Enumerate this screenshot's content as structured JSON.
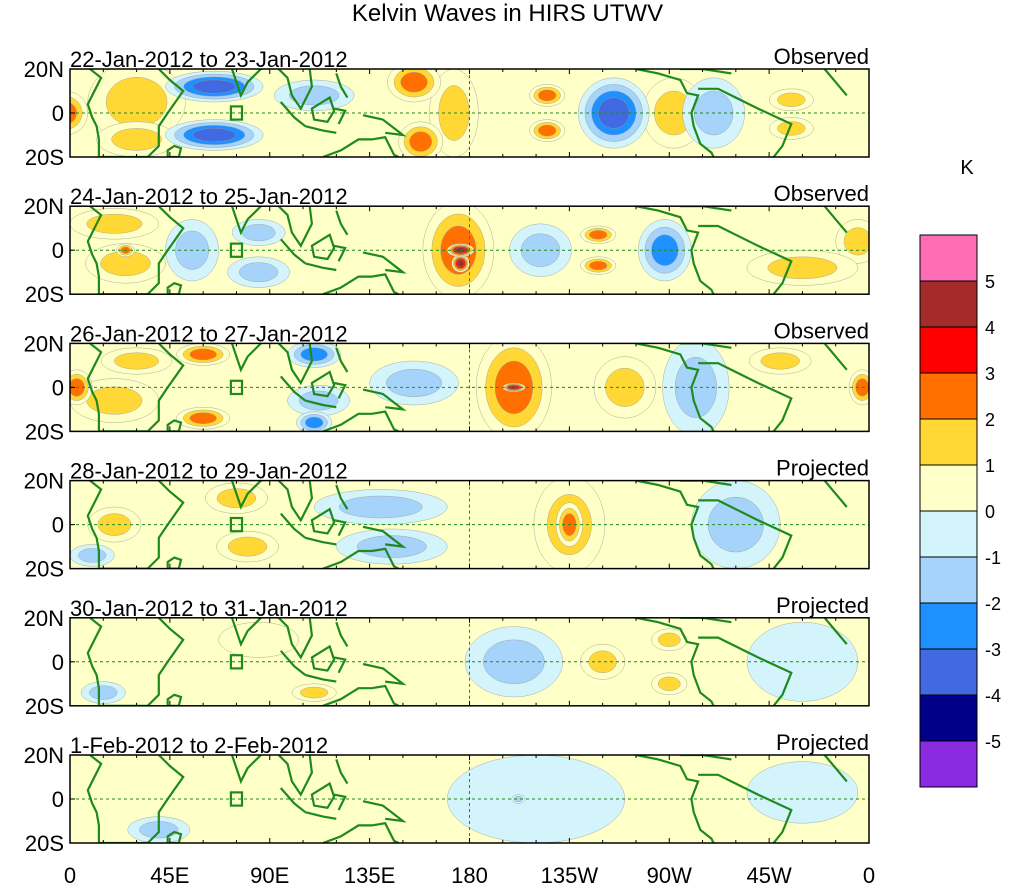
{
  "chart_data": {
    "type": "heatmap",
    "title": "Kelvin Waves in HIRS UTWV",
    "units": "K",
    "y_ticks": [
      "20N",
      "0",
      "20S"
    ],
    "x_ticks": [
      "0",
      "45E",
      "90E",
      "135E",
      "180",
      "135W",
      "90W",
      "45W",
      "0"
    ],
    "x_range_deg_east": [
      0,
      360
    ],
    "y_range_deg": [
      -20,
      20
    ],
    "colorbar": {
      "labels": [
        "5",
        "4",
        "3",
        "2",
        "1",
        "0",
        "-1",
        "-2",
        "-3",
        "-4",
        "-5"
      ],
      "colors": [
        "#ff6eb4",
        "#a52a2a",
        "#ff0000",
        "#ff7000",
        "#ffd836",
        "#ffffc8",
        "#d2f4fa",
        "#a5d3fa",
        "#1e90ff",
        "#4169e1",
        "#00008b",
        "#8a2be2"
      ]
    },
    "panels": [
      {
        "date_label": "22-Jan-2012 to 23-Jan-2012",
        "status": "Observed",
        "blobs": [
          {
            "lon": -2,
            "lat": 0,
            "w": 10,
            "h": 10,
            "v": 2.5
          },
          {
            "lon": 30,
            "lat": 5,
            "w": 22,
            "h": 18,
            "v": 1.5
          },
          {
            "lon": 30,
            "lat": -12,
            "w": 18,
            "h": 8,
            "v": 1.5
          },
          {
            "lon": 65,
            "lat": 12,
            "w": 22,
            "h": 7,
            "v": -3.5
          },
          {
            "lon": 65,
            "lat": -10,
            "w": 22,
            "h": 7,
            "v": -3.5
          },
          {
            "lon": 110,
            "lat": 8,
            "w": 18,
            "h": 7,
            "v": -1.5
          },
          {
            "lon": 155,
            "lat": 14,
            "w": 12,
            "h": 9,
            "v": 2.8
          },
          {
            "lon": 158,
            "lat": -13,
            "w": 10,
            "h": 9,
            "v": 2.8
          },
          {
            "lon": 173,
            "lat": 0,
            "w": 11,
            "h": 20,
            "v": 1.3
          },
          {
            "lon": 215,
            "lat": 8,
            "w": 8,
            "h": 5,
            "v": 2.8
          },
          {
            "lon": 215,
            "lat": -8,
            "w": 8,
            "h": 5,
            "v": 2.8
          },
          {
            "lon": 245,
            "lat": 0,
            "w": 16,
            "h": 16,
            "v": -3.6
          },
          {
            "lon": 272,
            "lat": 0,
            "w": 14,
            "h": 16,
            "v": 1.3
          },
          {
            "lon": 325,
            "lat": 6,
            "w": 10,
            "h": 5,
            "v": 1.7
          },
          {
            "lon": 325,
            "lat": -7,
            "w": 10,
            "h": 5,
            "v": 1.7
          },
          {
            "lon": 290,
            "lat": 0,
            "w": 14,
            "h": 16,
            "v": -1.3
          }
        ]
      },
      {
        "date_label": "24-Jan-2012 to 25-Jan-2012",
        "status": "Observed",
        "blobs": [
          {
            "lon": 20,
            "lat": 12,
            "w": 20,
            "h": 7,
            "v": 1.6
          },
          {
            "lon": 25,
            "lat": -6,
            "w": 18,
            "h": 9,
            "v": 1.6
          },
          {
            "lon": 25,
            "lat": 0,
            "w": 4,
            "h": 3,
            "v": 2.4
          },
          {
            "lon": 55,
            "lat": 0,
            "w": 12,
            "h": 14,
            "v": -1.3
          },
          {
            "lon": 85,
            "lat": 8,
            "w": 12,
            "h": 6,
            "v": -2.0
          },
          {
            "lon": 85,
            "lat": -10,
            "w": 14,
            "h": 7,
            "v": -2.0
          },
          {
            "lon": 175,
            "lat": 0,
            "w": 16,
            "h": 22,
            "v": 3.0
          },
          {
            "lon": 176,
            "lat": 0,
            "w": 6,
            "h": 3,
            "v": 4.6
          },
          {
            "lon": 176,
            "lat": -6,
            "w": 4,
            "h": 4,
            "v": 4.2
          },
          {
            "lon": 212,
            "lat": 0,
            "w": 14,
            "h": 12,
            "v": -1.3
          },
          {
            "lon": 238,
            "lat": 7,
            "w": 8,
            "h": 4,
            "v": 2.5
          },
          {
            "lon": 238,
            "lat": -7,
            "w": 8,
            "h": 4,
            "v": 2.5
          },
          {
            "lon": 268,
            "lat": 0,
            "w": 12,
            "h": 14,
            "v": -2.8
          },
          {
            "lon": 330,
            "lat": -8,
            "w": 25,
            "h": 8,
            "v": 1.4
          },
          {
            "lon": 355,
            "lat": 4,
            "w": 10,
            "h": 10,
            "v": 1.3
          }
        ]
      },
      {
        "date_label": "26-Jan-2012 to 27-Jan-2012",
        "status": "Observed",
        "blobs": [
          {
            "lon": 3,
            "lat": 0,
            "w": 7,
            "h": 8,
            "v": 2.4
          },
          {
            "lon": 20,
            "lat": -6,
            "w": 20,
            "h": 10,
            "v": 1.5
          },
          {
            "lon": 60,
            "lat": 15,
            "w": 12,
            "h": 5,
            "v": 2.4
          },
          {
            "lon": 60,
            "lat": -14,
            "w": 12,
            "h": 5,
            "v": 2.4
          },
          {
            "lon": 30,
            "lat": 12,
            "w": 16,
            "h": 6,
            "v": 1.3
          },
          {
            "lon": 110,
            "lat": 15,
            "w": 12,
            "h": 6,
            "v": -2.6
          },
          {
            "lon": 112,
            "lat": -6,
            "w": 14,
            "h": 7,
            "v": -1.5
          },
          {
            "lon": 110,
            "lat": -16,
            "w": 8,
            "h": 5,
            "v": -2.8
          },
          {
            "lon": 155,
            "lat": 2,
            "w": 20,
            "h": 10,
            "v": -1.3
          },
          {
            "lon": 200,
            "lat": 0,
            "w": 17,
            "h": 24,
            "v": 3.0
          },
          {
            "lon": 200,
            "lat": 0,
            "w": 5,
            "h": 2,
            "v": 4.3
          },
          {
            "lon": 250,
            "lat": 0,
            "w": 14,
            "h": 14,
            "v": 1.4
          },
          {
            "lon": 282,
            "lat": 0,
            "w": 15,
            "h": 22,
            "v": -1.4
          },
          {
            "lon": 320,
            "lat": 12,
            "w": 14,
            "h": 6,
            "v": 1.3
          },
          {
            "lon": 357,
            "lat": 0,
            "w": 6,
            "h": 8,
            "v": 2.4
          }
        ]
      },
      {
        "date_label": "28-Jan-2012 to 29-Jan-2012",
        "status": "Projected",
        "blobs": [
          {
            "lon": 20,
            "lat": 0,
            "w": 12,
            "h": 8,
            "v": 1.3
          },
          {
            "lon": 75,
            "lat": 12,
            "w": 14,
            "h": 7,
            "v": 1.5
          },
          {
            "lon": 80,
            "lat": -10,
            "w": 14,
            "h": 7,
            "v": 1.5
          },
          {
            "lon": 140,
            "lat": 8,
            "w": 30,
            "h": 8,
            "v": -1.3
          },
          {
            "lon": 145,
            "lat": -10,
            "w": 25,
            "h": 8,
            "v": -1.2
          },
          {
            "lon": 225,
            "lat": 0,
            "w": 16,
            "h": 22,
            "v": 1.8
          },
          {
            "lon": 225,
            "lat": 0,
            "w": 6,
            "h": 10,
            "v": 2.6
          },
          {
            "lon": 300,
            "lat": 0,
            "w": 20,
            "h": 20,
            "v": -1.2
          },
          {
            "lon": 10,
            "lat": -14,
            "w": 10,
            "h": 5,
            "v": -1.2
          }
        ]
      },
      {
        "date_label": "30-Jan-2012 to 31-Jan-2012",
        "status": "Projected",
        "blobs": [
          {
            "lon": 200,
            "lat": 0,
            "w": 22,
            "h": 16,
            "v": -1.3
          },
          {
            "lon": 240,
            "lat": 0,
            "w": 10,
            "h": 8,
            "v": 1.5
          },
          {
            "lon": 270,
            "lat": -10,
            "w": 8,
            "h": 5,
            "v": 1.5
          },
          {
            "lon": 270,
            "lat": 10,
            "w": 8,
            "h": 5,
            "v": 1.4
          },
          {
            "lon": 85,
            "lat": 10,
            "w": 18,
            "h": 8,
            "v": 0.5
          },
          {
            "lon": 110,
            "lat": -14,
            "w": 10,
            "h": 4,
            "v": 1.4
          },
          {
            "lon": 330,
            "lat": 0,
            "w": 25,
            "h": 18,
            "v": -0.8
          },
          {
            "lon": 15,
            "lat": -14,
            "w": 10,
            "h": 5,
            "v": -1.2
          }
        ]
      },
      {
        "date_label": "1-Feb-2012 to 2-Feb-2012",
        "status": "Projected",
        "blobs": [
          {
            "lon": 210,
            "lat": 0,
            "w": 40,
            "h": 20,
            "v": -0.8
          },
          {
            "lon": 202,
            "lat": 0,
            "w": 3,
            "h": 2,
            "v": -1.4
          },
          {
            "lon": 40,
            "lat": -14,
            "w": 14,
            "h": 6,
            "v": -1.3
          },
          {
            "lon": 330,
            "lat": 3,
            "w": 25,
            "h": 14,
            "v": -0.8
          }
        ]
      }
    ]
  }
}
